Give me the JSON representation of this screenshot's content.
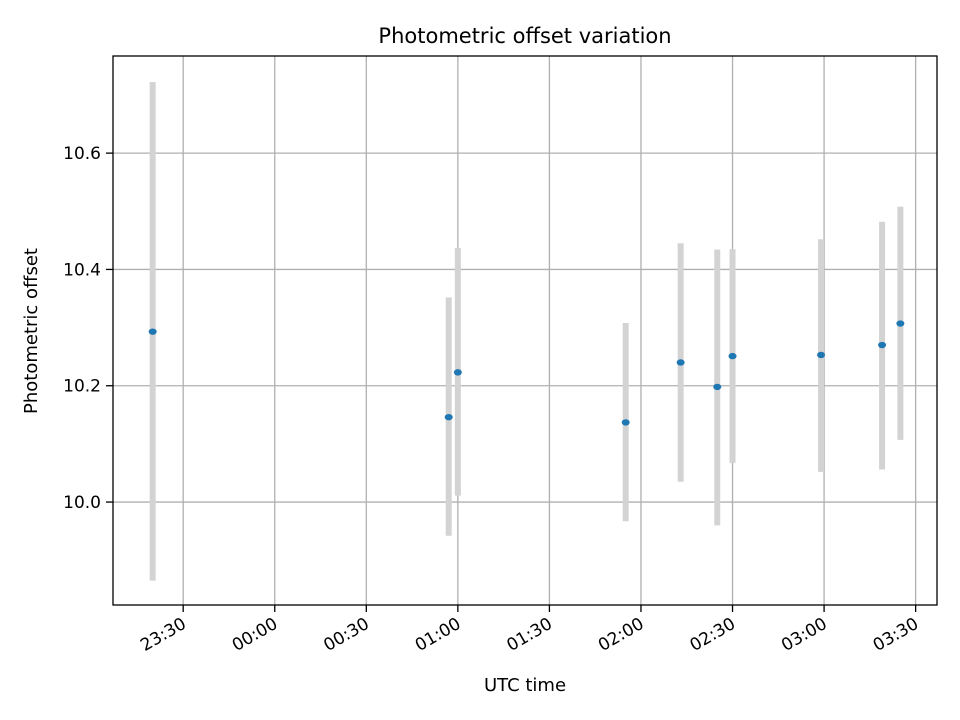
{
  "chart_data": {
    "type": "scatter",
    "title": "Photometric offset variation",
    "xlabel": "UTC time",
    "ylabel": "Photometric offset",
    "x_tick_labels": [
      "23:30",
      "00:00",
      "00:30",
      "01:00",
      "01:30",
      "02:00",
      "02:30",
      "03:00",
      "03:30"
    ],
    "y_tick_labels": [
      "10.0",
      "10.2",
      "10.4",
      "10.6"
    ],
    "y_ticks": [
      10.0,
      10.2,
      10.4,
      10.6
    ],
    "xlim": [
      "23:07",
      "03:37"
    ],
    "ylim": [
      9.823,
      10.767
    ],
    "grid": true,
    "legend": "none",
    "colors": {
      "point": "#1f77b4",
      "errorbar": "#d3d3d3",
      "grid": "#b0b0b0"
    },
    "points": [
      {
        "time": "23:20",
        "y": 10.293,
        "ylow": 9.865,
        "yhigh": 10.722
      },
      {
        "time": "00:57",
        "y": 10.146,
        "ylow": 9.942,
        "yhigh": 10.352
      },
      {
        "time": "01:00",
        "y": 10.223,
        "ylow": 10.011,
        "yhigh": 10.437
      },
      {
        "time": "01:55",
        "y": 10.137,
        "ylow": 9.967,
        "yhigh": 10.308
      },
      {
        "time": "02:13",
        "y": 10.24,
        "ylow": 10.035,
        "yhigh": 10.445
      },
      {
        "time": "02:25",
        "y": 10.198,
        "ylow": 9.96,
        "yhigh": 10.434
      },
      {
        "time": "02:30",
        "y": 10.251,
        "ylow": 10.067,
        "yhigh": 10.435
      },
      {
        "time": "02:59",
        "y": 10.253,
        "ylow": 10.052,
        "yhigh": 10.452
      },
      {
        "time": "03:19",
        "y": 10.27,
        "ylow": 10.056,
        "yhigh": 10.482
      },
      {
        "time": "03:25",
        "y": 10.307,
        "ylow": 10.107,
        "yhigh": 10.508
      }
    ]
  }
}
